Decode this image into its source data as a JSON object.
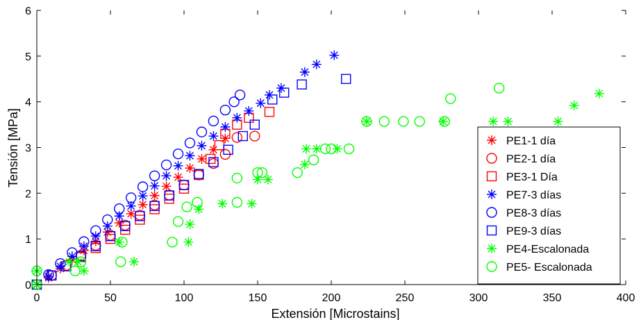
{
  "chart_data": {
    "type": "scatter",
    "title": "",
    "xlabel": "Extensión [Microstains]",
    "ylabel": "Tensión [MPa]",
    "xlim": [
      0,
      400
    ],
    "ylim": [
      0,
      6
    ],
    "xticks": [
      0,
      50,
      100,
      150,
      200,
      250,
      300,
      350,
      400
    ],
    "yticks": [
      0,
      1,
      2,
      3,
      4,
      5,
      6
    ],
    "grid": false,
    "legend_position": "right",
    "series": [
      {
        "name": "PE1-1 día",
        "color": "#ff0000",
        "marker": "star",
        "points": [
          [
            0,
            0
          ],
          [
            8,
            0.15
          ],
          [
            16,
            0.35
          ],
          [
            24,
            0.55
          ],
          [
            32,
            0.75
          ],
          [
            40,
            0.95
          ],
          [
            48,
            1.15
          ],
          [
            56,
            1.35
          ],
          [
            64,
            1.55
          ],
          [
            72,
            1.75
          ],
          [
            80,
            1.95
          ],
          [
            88,
            2.15
          ],
          [
            96,
            2.35
          ],
          [
            104,
            2.55
          ],
          [
            112,
            2.75
          ],
          [
            120,
            2.95
          ],
          [
            128,
            3.2
          ]
        ]
      },
      {
        "name": "PE2-1 día",
        "color": "#ff0000",
        "marker": "circle",
        "points": [
          [
            0,
            0
          ],
          [
            10,
            0.2
          ],
          [
            20,
            0.42
          ],
          [
            30,
            0.64
          ],
          [
            40,
            0.86
          ],
          [
            50,
            1.08
          ],
          [
            60,
            1.3
          ],
          [
            70,
            1.52
          ],
          [
            80,
            1.74
          ],
          [
            90,
            1.96
          ],
          [
            100,
            2.18
          ],
          [
            110,
            2.4
          ],
          [
            120,
            2.65
          ],
          [
            128,
            2.85
          ],
          [
            136,
            3.22
          ],
          [
            148,
            3.25
          ]
        ]
      },
      {
        "name": "PE3-1 Día",
        "color": "#ff0000",
        "marker": "square",
        "points": [
          [
            0,
            0
          ],
          [
            10,
            0.2
          ],
          [
            20,
            0.4
          ],
          [
            30,
            0.6
          ],
          [
            40,
            0.8
          ],
          [
            50,
            1.0
          ],
          [
            60,
            1.2
          ],
          [
            70,
            1.42
          ],
          [
            80,
            1.65
          ],
          [
            90,
            1.88
          ],
          [
            100,
            2.1
          ],
          [
            110,
            2.4
          ],
          [
            118,
            2.75
          ],
          [
            124,
            3.05
          ],
          [
            128,
            3.3
          ],
          [
            136,
            3.5
          ],
          [
            144,
            3.65
          ],
          [
            158,
            3.78
          ]
        ]
      },
      {
        "name": "PE7-3 días",
        "color": "#0000ff",
        "marker": "star",
        "points": [
          [
            0,
            0
          ],
          [
            8,
            0.18
          ],
          [
            16,
            0.4
          ],
          [
            24,
            0.62
          ],
          [
            32,
            0.84
          ],
          [
            40,
            1.06
          ],
          [
            48,
            1.28
          ],
          [
            56,
            1.5
          ],
          [
            64,
            1.72
          ],
          [
            72,
            1.94
          ],
          [
            80,
            2.16
          ],
          [
            88,
            2.38
          ],
          [
            96,
            2.6
          ],
          [
            104,
            2.82
          ],
          [
            112,
            3.04
          ],
          [
            120,
            3.25
          ],
          [
            128,
            3.45
          ],
          [
            136,
            3.65
          ],
          [
            144,
            3.8
          ],
          [
            152,
            3.97
          ],
          [
            158,
            4.15
          ],
          [
            166,
            4.3
          ],
          [
            182,
            4.65
          ],
          [
            190,
            4.82
          ],
          [
            202,
            5.02
          ]
        ]
      },
      {
        "name": "PE8-3 días",
        "color": "#0000ff",
        "marker": "circle",
        "points": [
          [
            0,
            0
          ],
          [
            8,
            0.22
          ],
          [
            16,
            0.46
          ],
          [
            24,
            0.7
          ],
          [
            32,
            0.94
          ],
          [
            40,
            1.18
          ],
          [
            48,
            1.42
          ],
          [
            56,
            1.66
          ],
          [
            64,
            1.9
          ],
          [
            72,
            2.14
          ],
          [
            80,
            2.38
          ],
          [
            88,
            2.62
          ],
          [
            96,
            2.86
          ],
          [
            104,
            3.1
          ],
          [
            112,
            3.34
          ],
          [
            120,
            3.58
          ],
          [
            128,
            3.82
          ],
          [
            134,
            4.0
          ],
          [
            138,
            4.15
          ]
        ]
      },
      {
        "name": "PE9-3 días",
        "color": "#0000ff",
        "marker": "square",
        "points": [
          [
            0,
            0
          ],
          [
            10,
            0.2
          ],
          [
            20,
            0.4
          ],
          [
            30,
            0.62
          ],
          [
            40,
            0.84
          ],
          [
            50,
            1.06
          ],
          [
            60,
            1.28
          ],
          [
            70,
            1.5
          ],
          [
            80,
            1.72
          ],
          [
            90,
            1.95
          ],
          [
            100,
            2.18
          ],
          [
            110,
            2.42
          ],
          [
            120,
            2.68
          ],
          [
            130,
            2.95
          ],
          [
            140,
            3.25
          ],
          [
            148,
            3.5
          ],
          [
            160,
            4.05
          ],
          [
            168,
            4.2
          ],
          [
            180,
            4.38
          ],
          [
            210,
            4.5
          ]
        ]
      },
      {
        "name": "PE4-Escalonada",
        "color": "#00ff00",
        "marker": "star",
        "points": [
          [
            0,
            0
          ],
          [
            0,
            0.3
          ],
          [
            22,
            0.5
          ],
          [
            28,
            0.5
          ],
          [
            32,
            0.3
          ],
          [
            56,
            0.93
          ],
          [
            66,
            0.5
          ],
          [
            103,
            0.93
          ],
          [
            104,
            1.32
          ],
          [
            110,
            1.65
          ],
          [
            126,
            1.77
          ],
          [
            146,
            1.77
          ],
          [
            150,
            2.3
          ],
          [
            157,
            2.3
          ],
          [
            182,
            2.63
          ],
          [
            183,
            2.97
          ],
          [
            190,
            2.97
          ],
          [
            204,
            2.97
          ],
          [
            224,
            3.57
          ],
          [
            276,
            3.57
          ],
          [
            310,
            3.57
          ],
          [
            320,
            3.57
          ],
          [
            354,
            3.57
          ],
          [
            365,
            3.92
          ],
          [
            382,
            4.18
          ]
        ]
      },
      {
        "name": "PE5- Escalonada",
        "color": "#00ff00",
        "marker": "circle",
        "points": [
          [
            0,
            0
          ],
          [
            0,
            0.3
          ],
          [
            26,
            0.3
          ],
          [
            30,
            0.5
          ],
          [
            58,
            0.93
          ],
          [
            57,
            0.5
          ],
          [
            92,
            0.93
          ],
          [
            96,
            1.38
          ],
          [
            102,
            1.7
          ],
          [
            109,
            1.8
          ],
          [
            136,
            1.8
          ],
          [
            136,
            2.33
          ],
          [
            150,
            2.45
          ],
          [
            153,
            2.45
          ],
          [
            177,
            2.45
          ],
          [
            188,
            2.73
          ],
          [
            196,
            2.97
          ],
          [
            200,
            2.97
          ],
          [
            212,
            2.97
          ],
          [
            224,
            3.57
          ],
          [
            236,
            3.57
          ],
          [
            249,
            3.57
          ],
          [
            260,
            3.57
          ],
          [
            277,
            3.57
          ],
          [
            281,
            4.07
          ],
          [
            314,
            4.3
          ]
        ]
      }
    ]
  }
}
